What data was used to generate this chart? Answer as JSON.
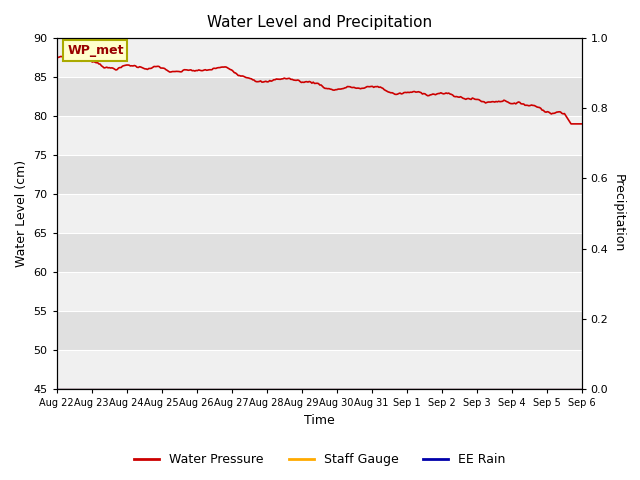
{
  "title": "Water Level and Precipitation",
  "xlabel": "Time",
  "ylabel_left": "Water Level (cm)",
  "ylabel_right": "Precipitation",
  "ylim_left": [
    45,
    90
  ],
  "ylim_right": [
    0.0,
    1.0
  ],
  "yticks_left": [
    45,
    50,
    55,
    60,
    65,
    70,
    75,
    80,
    85,
    90
  ],
  "yticks_right": [
    0.0,
    0.2,
    0.4,
    0.6,
    0.8,
    1.0
  ],
  "xtick_labels": [
    "Aug 22",
    "Aug 23",
    "Aug 24",
    "Aug 25",
    "Aug 26",
    "Aug 27",
    "Aug 28",
    "Aug 29",
    "Aug 30",
    "Aug 31",
    "Sep 1",
    "Sep 2",
    "Sep 3",
    "Sep 4",
    "Sep 5",
    "Sep 6"
  ],
  "water_pressure_color": "#cc0000",
  "staff_gauge_color": "#ffaa00",
  "ee_rain_color": "#0000aa",
  "bg_color_light": "#f0f0f0",
  "bg_color_dark": "#e0e0e0",
  "annotation_text": "WP_met",
  "annotation_box_color": "#ffffcc",
  "annotation_border_color": "#aaaa00",
  "legend_labels": [
    "Water Pressure",
    "Staff Gauge",
    "EE Rain"
  ],
  "figsize": [
    6.4,
    4.8
  ],
  "dpi": 100
}
